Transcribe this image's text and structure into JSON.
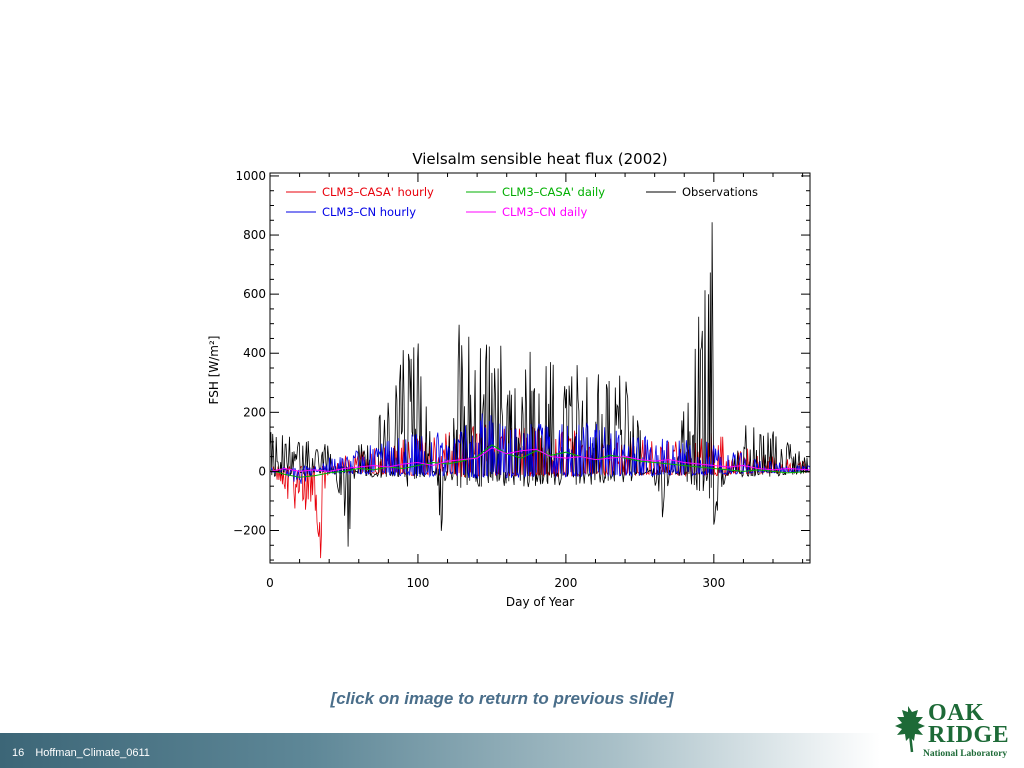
{
  "chart_data": {
    "type": "line",
    "title": "Vielsalm sensible heat flux (2002)",
    "xlabel": "Day of Year",
    "ylabel": "FSH [W/m²]",
    "xlim": [
      0,
      365
    ],
    "ylim": [
      -310,
      1010
    ],
    "xticks": [
      0,
      100,
      200,
      300
    ],
    "yticks": [
      -200,
      0,
      200,
      400,
      600,
      800,
      1000
    ],
    "legend_position": "top-left inside plot",
    "series": [
      {
        "name": "CLM3–CASA' hourly",
        "color": "#e8000b",
        "kind": "hourly",
        "x": [
          0,
          10,
          20,
          30,
          34,
          40,
          60,
          90,
          120,
          150,
          180,
          210,
          240,
          270,
          300,
          330,
          365
        ],
        "y": [
          20,
          -90,
          -150,
          -110,
          -305,
          40,
          70,
          110,
          140,
          170,
          150,
          140,
          120,
          100,
          140,
          60,
          30
        ]
      },
      {
        "name": "CLM3–CASA' daily",
        "color": "#00b000",
        "kind": "daily",
        "x": [
          0,
          10,
          20,
          30,
          40,
          50,
          60,
          70,
          80,
          90,
          100,
          110,
          120,
          130,
          140,
          150,
          160,
          170,
          180,
          190,
          200,
          210,
          220,
          230,
          240,
          250,
          260,
          270,
          280,
          290,
          300,
          310,
          320,
          330,
          340,
          350,
          365
        ],
        "y": [
          5,
          -10,
          -20,
          -15,
          -5,
          0,
          10,
          5,
          15,
          10,
          20,
          30,
          25,
          35,
          50,
          90,
          60,
          45,
          70,
          55,
          65,
          50,
          40,
          55,
          45,
          35,
          30,
          25,
          20,
          15,
          10,
          5,
          0,
          5,
          0,
          -5,
          0
        ]
      },
      {
        "name": "Observations",
        "color": "#000000",
        "kind": "hourly",
        "x": [
          0,
          20,
          40,
          53,
          60,
          80,
          90,
          100,
          116,
          128,
          140,
          150,
          160,
          180,
          200,
          220,
          240,
          265,
          280,
          299,
          300,
          320,
          340,
          365
        ],
        "y": [
          150,
          110,
          90,
          -260,
          100,
          250,
          460,
          490,
          -210,
          570,
          420,
          450,
          440,
          430,
          370,
          360,
          350,
          -160,
          220,
          850,
          -180,
          160,
          140,
          40
        ]
      },
      {
        "name": "CLM3–CN hourly",
        "color": "#0000e6",
        "kind": "hourly",
        "x": [
          0,
          20,
          40,
          60,
          80,
          100,
          120,
          140,
          150,
          160,
          180,
          200,
          220,
          240,
          260,
          280,
          300,
          330,
          365
        ],
        "y": [
          40,
          -60,
          50,
          80,
          110,
          130,
          150,
          190,
          210,
          180,
          170,
          160,
          170,
          130,
          120,
          110,
          100,
          40,
          20
        ]
      },
      {
        "name": "CLM3–CN daily",
        "color": "#ff00ff",
        "kind": "daily",
        "x": [
          0,
          10,
          20,
          30,
          40,
          50,
          60,
          70,
          80,
          90,
          100,
          110,
          120,
          130,
          140,
          150,
          160,
          170,
          180,
          190,
          200,
          210,
          220,
          230,
          240,
          250,
          260,
          270,
          280,
          290,
          300,
          310,
          320,
          330,
          340,
          350,
          365
        ],
        "y": [
          0,
          10,
          0,
          5,
          0,
          10,
          15,
          20,
          15,
          25,
          30,
          20,
          35,
          40,
          45,
          80,
          60,
          70,
          75,
          50,
          45,
          50,
          40,
          45,
          50,
          40,
          35,
          40,
          30,
          25,
          20,
          15,
          20,
          10,
          5,
          10,
          5
        ]
      }
    ]
  },
  "caption": "[click on image to return to previous slide]",
  "footer": {
    "slide_number": "16",
    "deck_name": "Hoffman_Climate_0611"
  },
  "logo": {
    "line1": "OAK",
    "line2": "RIDGE",
    "line3": "National Laboratory",
    "color": "#1d6a37"
  }
}
